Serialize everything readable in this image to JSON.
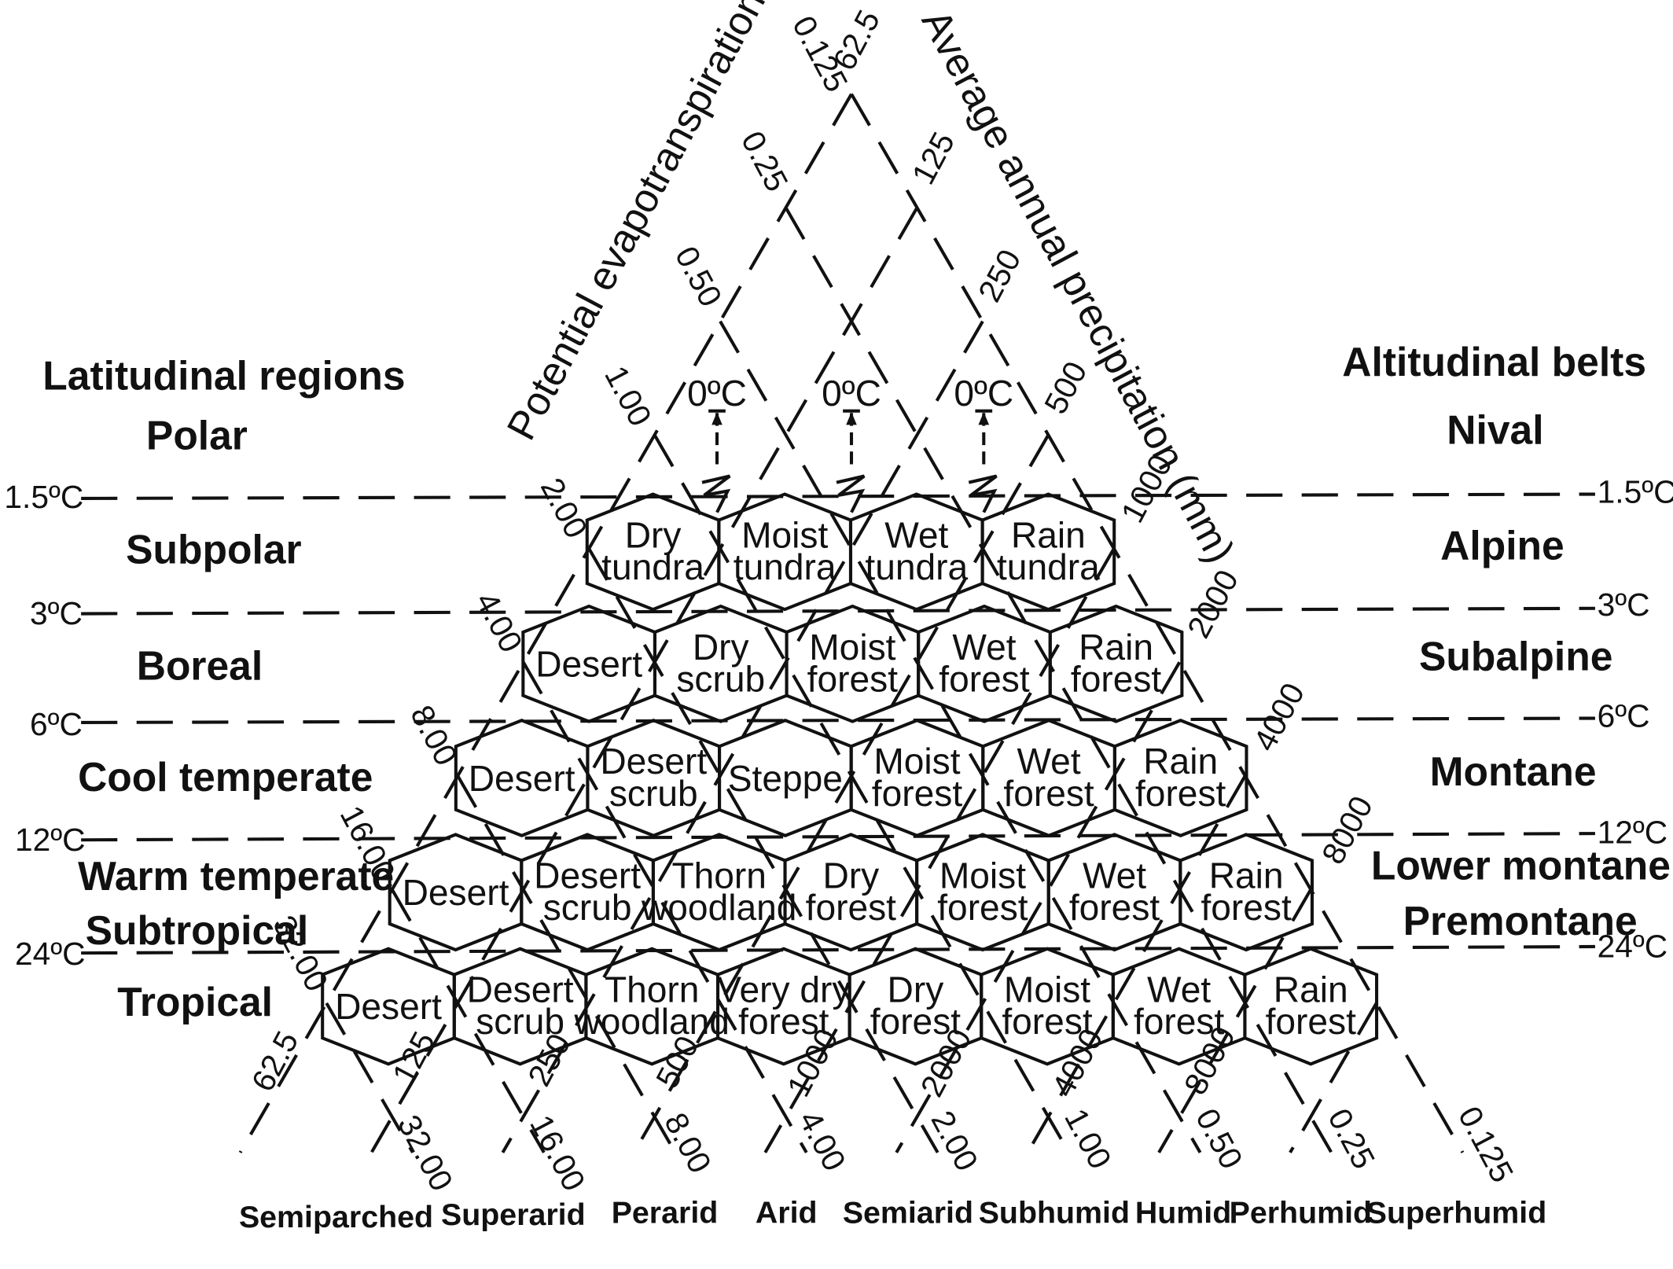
{
  "axes": {
    "pet_ratio_label": "Potential evapotranspiration ratio",
    "precip_label": "Average annual precipitation (mm)"
  },
  "latitudinal": {
    "title": "Latitudinal regions",
    "regions": [
      "Polar",
      "Subpolar",
      "Boreal",
      "Cool temperate",
      "Warm temperate",
      "Subtropical",
      "Tropical"
    ]
  },
  "altitudinal": {
    "title": "Altitudinal belts",
    "belts": [
      "Nival",
      "Alpine",
      "Subalpine",
      "Montane",
      "Lower montane",
      "Premontane"
    ]
  },
  "temperature_lines": [
    "1.5ºC",
    "3ºC",
    "6ºC",
    "12ºC",
    "24ºC"
  ],
  "frost_line_label": "0ºC",
  "pet_ratio_ticks": [
    "0.125",
    "0.25",
    "0.50",
    "1.00",
    "2.00",
    "4.00",
    "8.00",
    "16.00",
    "32.00"
  ],
  "precip_ticks": [
    "62.5",
    "125",
    "250",
    "500",
    "1000",
    "2000",
    "4000",
    "8000"
  ],
  "bottom_pet_ticks": [
    "32.00",
    "16.00",
    "8.00",
    "4.00",
    "2.00",
    "1.00",
    "0.50",
    "0.25",
    "0.125"
  ],
  "bottom_precip_ticks": [
    "62.5",
    "125",
    "250",
    "500",
    "1000",
    "2000",
    "4000",
    "8000"
  ],
  "humidity_provinces": [
    "Semiparched",
    "Superarid",
    "Perarid",
    "Arid",
    "Semiarid",
    "Subhumid",
    "Humid",
    "Perhumid",
    "Superhumid"
  ],
  "life_zones": [
    [
      "Dry|tundra",
      "Moist|tundra",
      "Wet|tundra",
      "Rain|tundra"
    ],
    [
      "Desert",
      "Dry|scrub",
      "Moist|forest",
      "Wet|forest",
      "Rain|forest"
    ],
    [
      "Desert",
      "Desert|scrub",
      "Steppe",
      "Moist|forest",
      "Wet|forest",
      "Rain|forest"
    ],
    [
      "Desert",
      "Desert|scrub",
      "Thorn|woodland",
      "Dry|forest",
      "Moist|forest",
      "Wet|forest",
      "Rain|forest"
    ],
    [
      "Desert",
      "Desert|scrub",
      "Thorn|woodland",
      "Very dry|forest",
      "Dry|forest",
      "Moist|forest",
      "Wet|forest",
      "Rain|forest"
    ]
  ]
}
